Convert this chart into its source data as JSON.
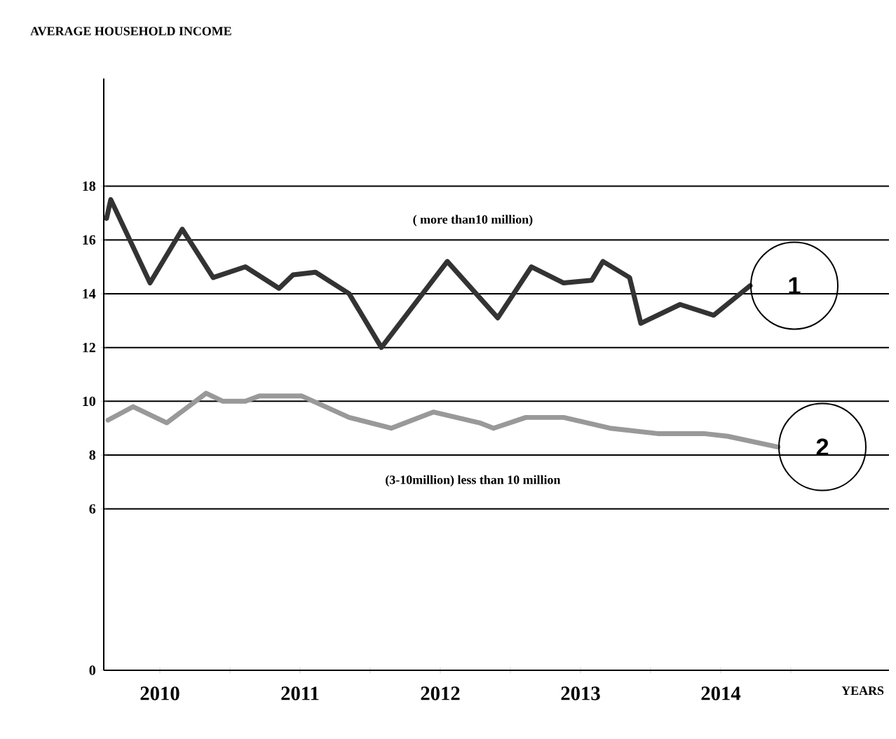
{
  "chart_data": {
    "type": "line",
    "ylabel": "AVERAGE HOUSEHOLD INCOME",
    "xlabel": "YEARS",
    "xlim": [
      2010.1,
      2015.7
    ],
    "ylim": [
      0,
      22
    ],
    "xticks": [
      {
        "value": 2010.5,
        "label": "2010"
      },
      {
        "value": 2011,
        "label": null
      },
      {
        "value": 2011.5,
        "label": "2011"
      },
      {
        "value": 2012,
        "label": null
      },
      {
        "value": 2012.5,
        "label": "2012"
      },
      {
        "value": 2013,
        "label": null
      },
      {
        "value": 2013.5,
        "label": "2013"
      },
      {
        "value": 2014,
        "label": null
      },
      {
        "value": 2014.5,
        "label": "2014"
      },
      {
        "value": 2015,
        "label": null
      }
    ],
    "yticks": [
      0,
      6,
      8,
      10,
      12,
      14,
      16,
      18
    ],
    "grid": "y",
    "legend": false,
    "marker": "none",
    "line_style": "solid",
    "annotations": [
      "( more than10 million)",
      "(3-10million) less than 10 million"
    ],
    "series": [
      {
        "name": "1",
        "color": "#333333",
        "x": [
          2010.12,
          2010.15,
          2010.43,
          2010.66,
          2010.88,
          2011.11,
          2011.35,
          2011.45,
          2011.61,
          2011.85,
          2012.08,
          2012.55,
          2012.91,
          2013.15,
          2013.38,
          2013.58,
          2013.66,
          2013.85,
          2013.93,
          2014.21,
          2014.45,
          2014.71
        ],
        "values": [
          16.8,
          17.5,
          14.4,
          16.4,
          14.6,
          15.0,
          14.2,
          14.7,
          14.8,
          14.0,
          12.0,
          15.2,
          13.1,
          15.0,
          14.4,
          14.5,
          15.2,
          14.6,
          12.9,
          13.6,
          13.2,
          14.3
        ]
      },
      {
        "name": "2",
        "color": "#999999",
        "x": [
          2010.13,
          2010.31,
          2010.55,
          2010.83,
          2010.95,
          2011.11,
          2011.21,
          2011.51,
          2011.85,
          2012.15,
          2012.45,
          2012.78,
          2012.88,
          2013.11,
          2013.38,
          2013.71,
          2014.05,
          2014.38,
          2014.55,
          2014.91
        ],
        "values": [
          9.3,
          9.8,
          9.2,
          10.3,
          10.0,
          10.0,
          10.2,
          10.2,
          9.4,
          9.0,
          9.6,
          9.2,
          9.0,
          9.4,
          9.4,
          9.0,
          8.8,
          8.8,
          8.7,
          8.3
        ]
      }
    ]
  }
}
